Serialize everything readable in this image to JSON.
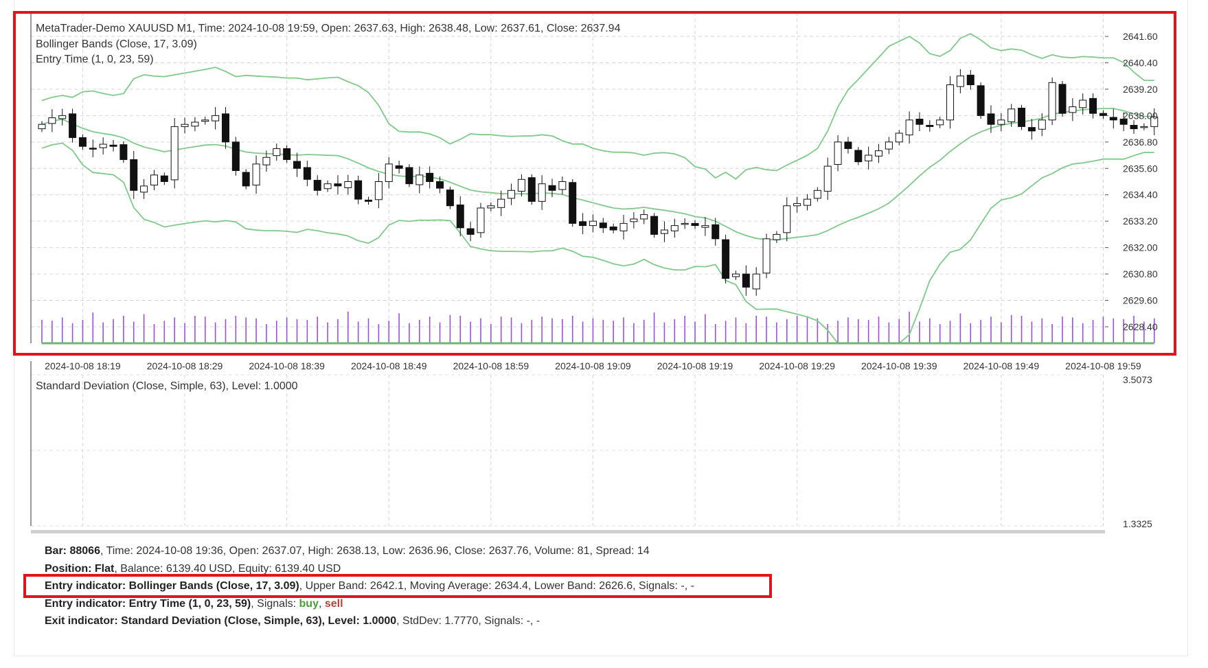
{
  "chart": {
    "title_line": "MetaTrader-Demo XAUUSD M1, Time: 2024-10-08 19:59, Open: 2637.63, High: 2638.48, Low: 2637.61, Close: 2637.94",
    "indicator_1": "Bollinger Bands (Close, 17, 3.09)",
    "indicator_2": "Entry Time (1, 0, 23, 59)",
    "subpanel_label": "Standard Deviation (Close, Simple, 63), Level: 1.0000",
    "price_ticks": [
      "2641.60",
      "2640.40",
      "2639.20",
      "2638.00",
      "2636.80",
      "2635.60",
      "2634.40",
      "2633.20",
      "2632.00",
      "2630.80",
      "2629.60",
      "2628.40"
    ],
    "time_ticks": [
      "2024-10-08 18:19",
      "2024-10-08 18:29",
      "2024-10-08 18:39",
      "2024-10-08 18:49",
      "2024-10-08 18:59",
      "2024-10-08 19:09",
      "2024-10-08 19:19",
      "2024-10-08 19:29",
      "2024-10-08 19:39",
      "2024-10-08 19:49",
      "2024-10-08 19:59"
    ],
    "std_max": "3.5073",
    "std_min": "1.3325",
    "colors": {
      "band": "#7fc98a",
      "std": "#6db86f",
      "volume": "#9b4fd9",
      "highlight": "#e0141a"
    }
  },
  "chart_data": {
    "type": "candlestick",
    "symbol": "XAUUSD",
    "timeframe": "M1",
    "x_start": "2024-10-08 18:15",
    "x_end": "2024-10-08 19:59",
    "ylim": [
      2628.4,
      2641.6
    ],
    "closes": [
      2637.6,
      2637.9,
      2638.0,
      2637.0,
      2636.6,
      2636.5,
      2636.7,
      2636.6,
      2636.0,
      2634.6,
      2634.8,
      2635.3,
      2635.0,
      2637.5,
      2637.6,
      2637.7,
      2637.8,
      2638.0,
      2636.8,
      2635.5,
      2634.8,
      2635.8,
      2636.1,
      2636.5,
      2636.0,
      2635.6,
      2635.1,
      2634.6,
      2634.9,
      2634.8,
      2635.0,
      2634.2,
      2634.1,
      2635.0,
      2635.8,
      2635.6,
      2634.9,
      2635.3,
      2635.0,
      2634.7,
      2633.9,
      2632.9,
      2632.6,
      2633.8,
      2633.9,
      2634.2,
      2634.6,
      2635.1,
      2634.1,
      2634.9,
      2634.6,
      2635.0,
      2633.1,
      2633.0,
      2633.2,
      2632.9,
      2632.8,
      2633.1,
      2633.3,
      2633.5,
      2632.6,
      2632.8,
      2633.0,
      2633.1,
      2633.0,
      2633.0,
      2632.4,
      2630.6,
      2630.8,
      2630.2,
      2630.8,
      2632.4,
      2632.6,
      2633.9,
      2634.0,
      2634.2,
      2634.6,
      2635.7,
      2636.8,
      2636.5,
      2635.9,
      2636.2,
      2636.4,
      2636.8,
      2637.2,
      2637.8,
      2637.6,
      2637.5,
      2637.8,
      2639.4,
      2639.8,
      2639.4,
      2638.0,
      2637.6,
      2637.8,
      2638.3,
      2637.5,
      2637.3,
      2637.8,
      2639.5,
      2638.1,
      2638.4,
      2638.7,
      2638.1,
      2638.0,
      2637.8,
      2637.6,
      2637.4,
      2637.5,
      2637.94
    ],
    "bollinger": {
      "period": 17,
      "deviation": 3.09,
      "last_upper": 2642.1,
      "last_ma": 2634.4,
      "last_lower": 2626.6
    },
    "std_dev": {
      "period": 63,
      "level": 1.0,
      "last": 1.777,
      "ylim": [
        1.3325,
        3.5073
      ]
    }
  },
  "info": {
    "bar_label": "Bar:",
    "bar_value": "88066",
    "bar_rest": ", Time: 2024-10-08 19:36, Open: 2637.07, High: 2638.13, Low: 2636.96, Close: 2637.76, Volume: 81, Spread: 14",
    "position_label": "Position: Flat",
    "position_rest": ", Balance: 6139.40 USD, Equity: 6139.40 USD",
    "entry1_label": "Entry indicator: Bollinger Bands (Close, 17, 3.09)",
    "entry1_rest": ", Upper Band: 2642.1, Moving Average: 2634.4, Lower Band: 2626.6, Signals: -, -",
    "entry2_label": "Entry indicator: Entry Time (1, 0, 23, 59)",
    "entry2_rest": ", Signals: ",
    "entry2_buy": "buy",
    "entry2_sep": ", ",
    "entry2_sell": "sell",
    "exit_label": "Exit indicator: Standard Deviation (Close, Simple, 63), Level: 1.0000",
    "exit_rest": ", StdDev: 1.7770, Signals: -, -"
  }
}
